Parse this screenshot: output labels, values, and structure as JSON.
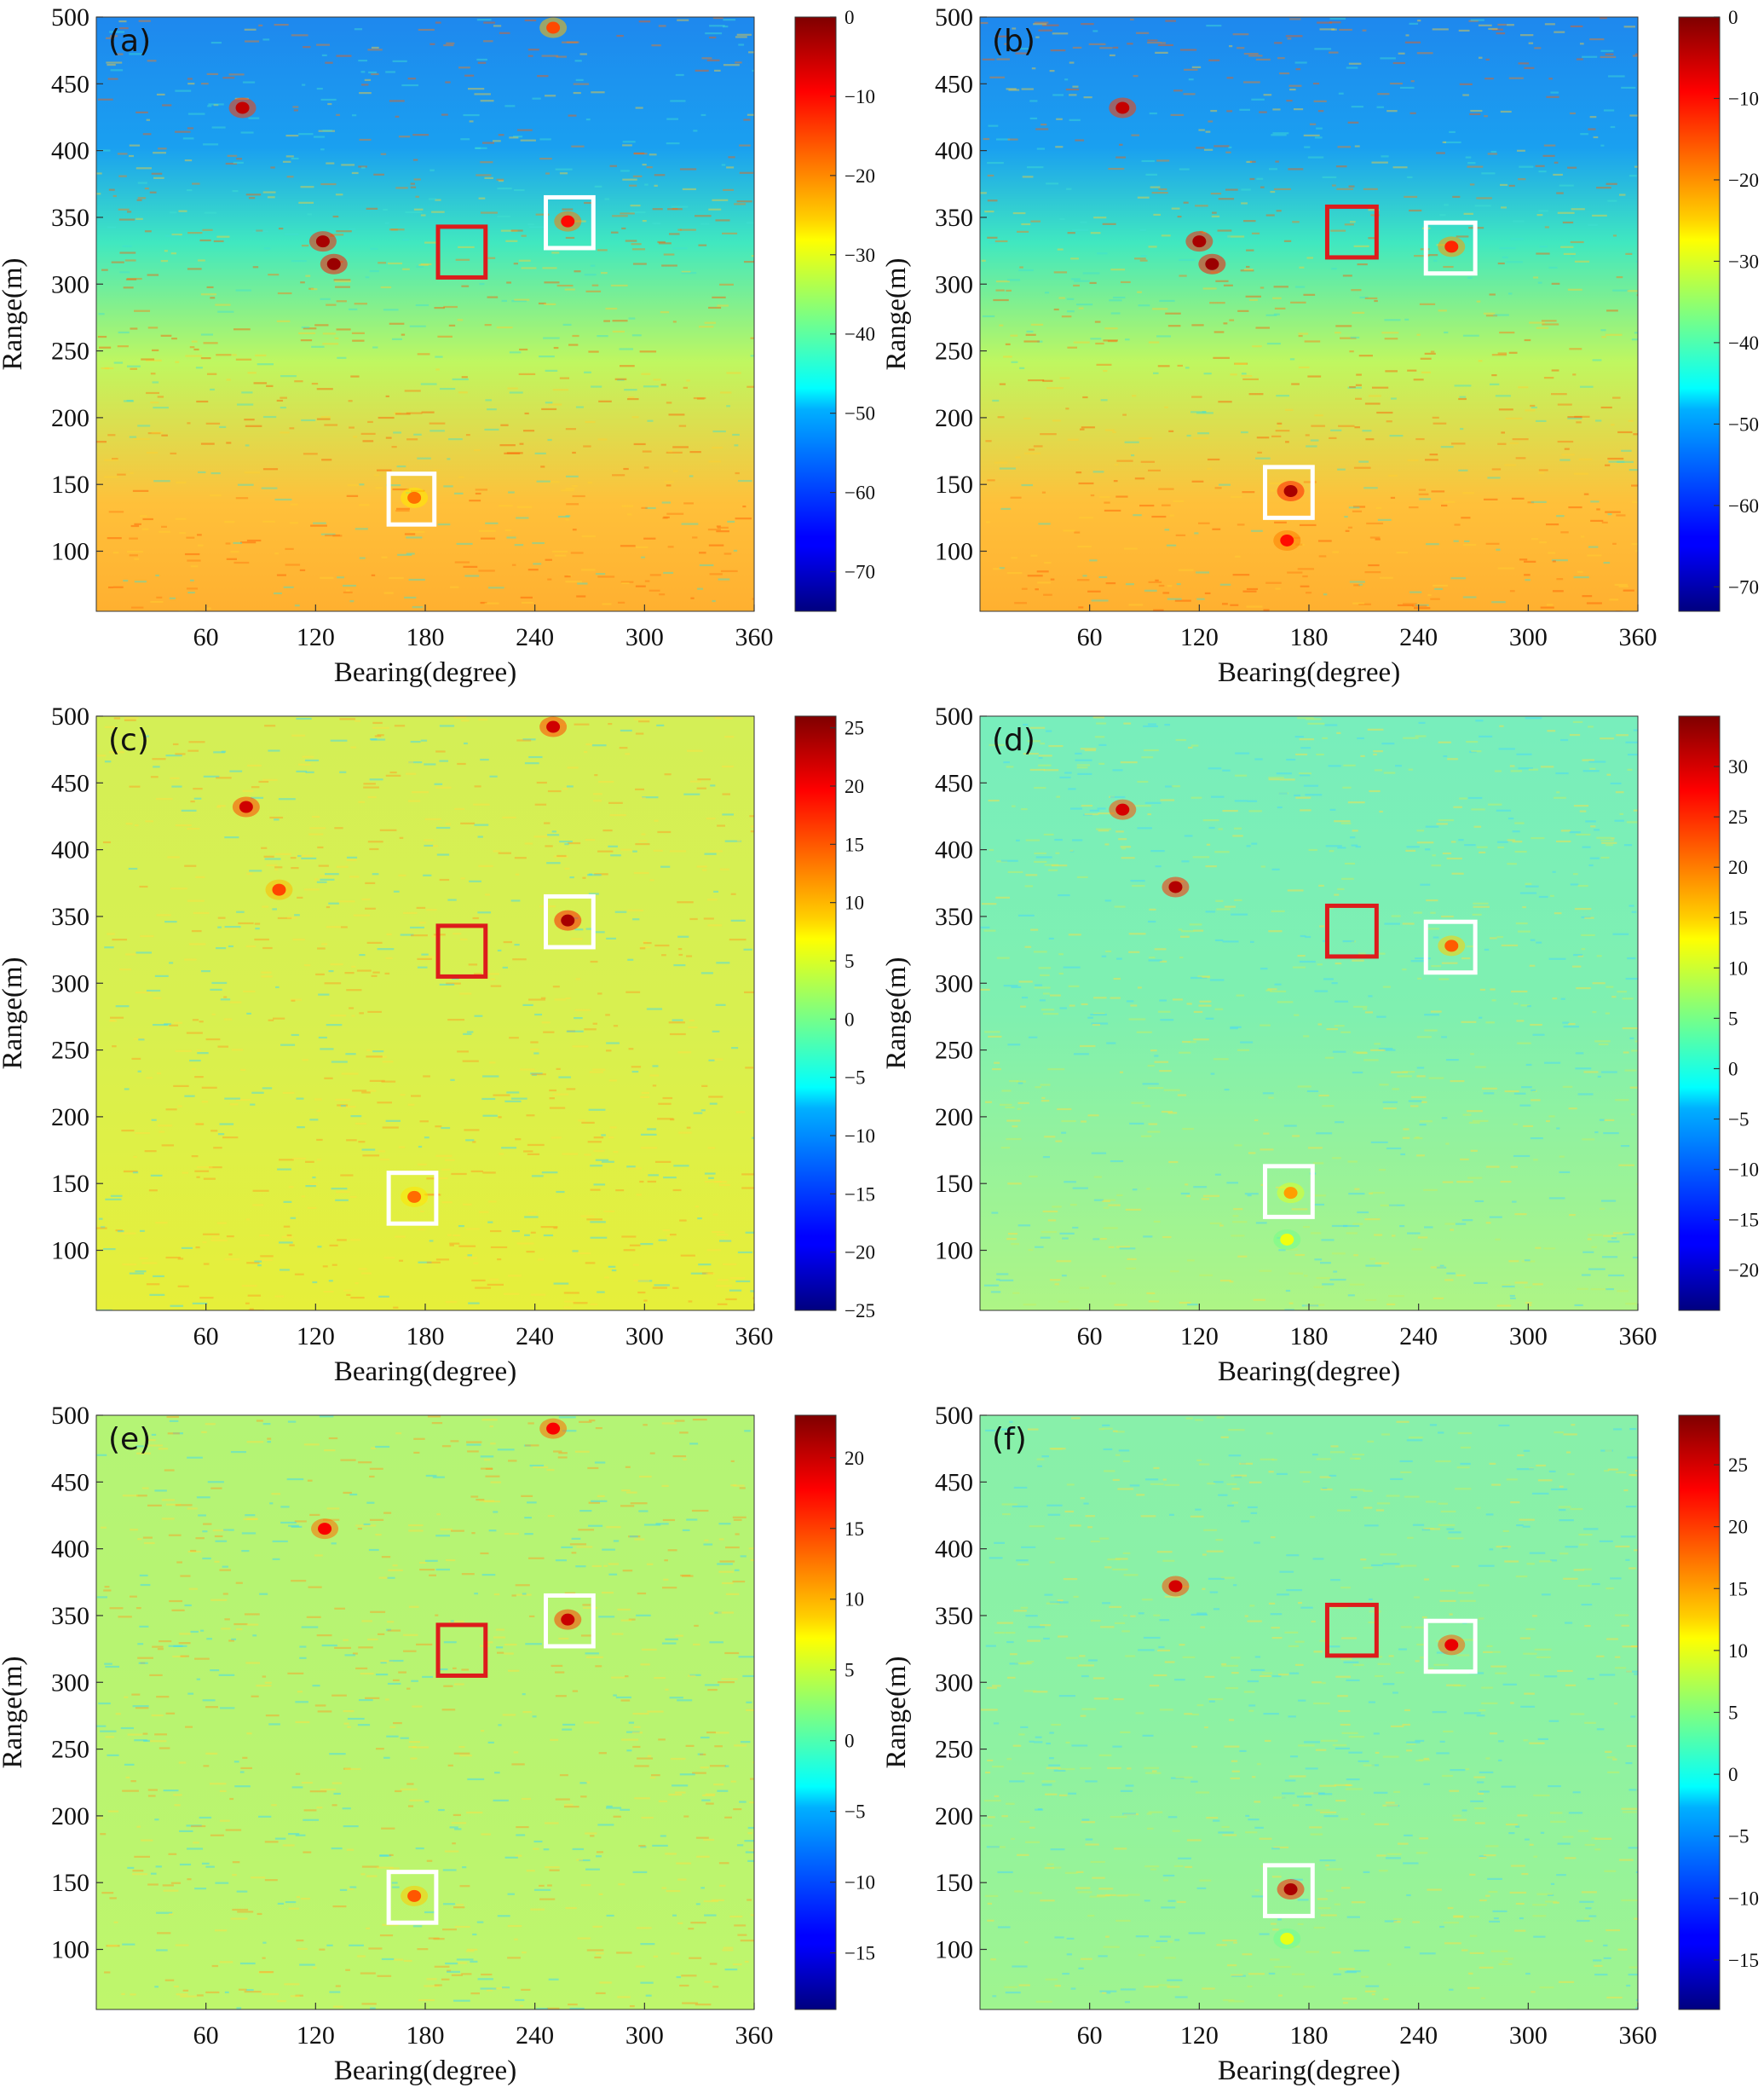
{
  "chart_data": [
    {
      "type": "heatmap",
      "label": "(a)",
      "xlabel": "Bearing(degree)",
      "ylabel": "Range(m)",
      "xlim": [
        0,
        360
      ],
      "ylim": [
        55,
        500
      ],
      "xticks": [
        60,
        120,
        180,
        240,
        300,
        360
      ],
      "yticks": [
        100,
        150,
        200,
        250,
        300,
        350,
        400,
        450,
        500
      ],
      "colormap": "jet",
      "clim": [
        -75,
        0
      ],
      "colorbar_ticks": [
        0,
        -10,
        -20,
        -30,
        -40,
        -50,
        -60,
        -70
      ],
      "features": "blue region above 380 m; green mid-field; orange-red bands at bottom; strong red scatterers near (80,432), (125,330), (130,315); U-shaped arcs around 100-180 deg",
      "boxes": [
        {
          "color": "white",
          "bearing": [
            160,
            185
          ],
          "range": [
            120,
            158
          ]
        },
        {
          "color": "white",
          "bearing": [
            246,
            272
          ],
          "range": [
            327,
            365
          ]
        },
        {
          "color": "red",
          "bearing": [
            187,
            213
          ],
          "range": [
            305,
            343
          ]
        }
      ],
      "hotspots": [
        {
          "bearing": 80,
          "range": 432,
          "value": -5
        },
        {
          "bearing": 124,
          "range": 332,
          "value": -3
        },
        {
          "bearing": 130,
          "range": 315,
          "value": -2
        },
        {
          "bearing": 258,
          "range": 347,
          "value": -10
        },
        {
          "bearing": 250,
          "range": 492,
          "value": -15
        },
        {
          "bearing": 174,
          "range": 140,
          "value": -18
        }
      ]
    },
    {
      "type": "heatmap",
      "label": "(b)",
      "xlabel": "Bearing(degree)",
      "ylabel": "Range(m)",
      "xlim": [
        0,
        360
      ],
      "ylim": [
        55,
        500
      ],
      "xticks": [
        60,
        120,
        180,
        240,
        300,
        360
      ],
      "yticks": [
        100,
        150,
        200,
        250,
        300,
        350,
        400,
        450,
        500
      ],
      "colormap": "jet",
      "clim": [
        -73,
        0
      ],
      "colorbar_ticks": [
        0,
        -10,
        -20,
        -30,
        -40,
        -50,
        -60,
        -70
      ],
      "features": "same scene as (a) with stronger target near bearing 170 deg, range 145 m",
      "boxes": [
        {
          "color": "white",
          "bearing": [
            156,
            182
          ],
          "range": [
            125,
            163
          ]
        },
        {
          "color": "white",
          "bearing": [
            244,
            271
          ],
          "range": [
            308,
            346
          ]
        },
        {
          "color": "red",
          "bearing": [
            190,
            217
          ],
          "range": [
            320,
            358
          ]
        }
      ],
      "hotspots": [
        {
          "bearing": 78,
          "range": 432,
          "value": -5
        },
        {
          "bearing": 120,
          "range": 332,
          "value": -3
        },
        {
          "bearing": 127,
          "range": 315,
          "value": -2
        },
        {
          "bearing": 258,
          "range": 328,
          "value": -12
        },
        {
          "bearing": 170,
          "range": 145,
          "value": -3
        },
        {
          "bearing": 168,
          "range": 108,
          "value": -10
        }
      ]
    },
    {
      "type": "heatmap",
      "label": "(c)",
      "xlabel": "Bearing(degree)",
      "ylabel": "Range(m)",
      "xlim": [
        0,
        360
      ],
      "ylim": [
        55,
        500
      ],
      "xticks": [
        60,
        120,
        180,
        240,
        300,
        360
      ],
      "yticks": [
        100,
        150,
        200,
        250,
        300,
        350,
        400,
        450,
        500
      ],
      "colormap": "jet",
      "clim": [
        -25,
        26
      ],
      "colorbar_ticks": [
        25,
        20,
        15,
        10,
        5,
        0,
        -5,
        -10,
        -15,
        -20,
        -25
      ],
      "features": "mostly yellow-green background with orange streaks; cyan band near 160-230 deg",
      "boxes": [
        {
          "color": "white",
          "bearing": [
            160,
            186
          ],
          "range": [
            120,
            158
          ]
        },
        {
          "color": "white",
          "bearing": [
            246,
            272
          ],
          "range": [
            327,
            365
          ]
        },
        {
          "color": "red",
          "bearing": [
            187,
            213
          ],
          "range": [
            305,
            343
          ]
        }
      ],
      "hotspots": [
        {
          "bearing": 82,
          "range": 432,
          "value": 22
        },
        {
          "bearing": 258,
          "range": 347,
          "value": 24
        },
        {
          "bearing": 250,
          "range": 492,
          "value": 22
        },
        {
          "bearing": 174,
          "range": 140,
          "value": 14
        },
        {
          "bearing": 100,
          "range": 370,
          "value": 16
        }
      ]
    },
    {
      "type": "heatmap",
      "label": "(d)",
      "xlabel": "Bearing(degree)",
      "ylabel": "Range(m)",
      "xlim": [
        0,
        360
      ],
      "ylim": [
        55,
        500
      ],
      "xticks": [
        60,
        120,
        180,
        240,
        300,
        360
      ],
      "yticks": [
        100,
        150,
        200,
        250,
        300,
        350,
        400,
        450,
        500
      ],
      "colormap": "jet",
      "clim": [
        -24,
        35
      ],
      "colorbar_ticks": [
        30,
        25,
        20,
        15,
        10,
        5,
        0,
        -5,
        -10,
        -15,
        -20
      ],
      "features": "cyan-green background, blue region 160-240 deg above 250 m",
      "boxes": [
        {
          "color": "white",
          "bearing": [
            156,
            182
          ],
          "range": [
            125,
            163
          ]
        },
        {
          "color": "white",
          "bearing": [
            244,
            271
          ],
          "range": [
            308,
            346
          ]
        },
        {
          "color": "red",
          "bearing": [
            190,
            217
          ],
          "range": [
            320,
            358
          ]
        }
      ],
      "hotspots": [
        {
          "bearing": 78,
          "range": 430,
          "value": 30
        },
        {
          "bearing": 107,
          "range": 372,
          "value": 32
        },
        {
          "bearing": 258,
          "range": 328,
          "value": 22
        },
        {
          "bearing": 170,
          "range": 143,
          "value": 18
        },
        {
          "bearing": 168,
          "range": 108,
          "value": 12
        }
      ]
    },
    {
      "type": "heatmap",
      "label": "(e)",
      "xlabel": "Bearing(degree)",
      "ylabel": "Range(m)",
      "xlim": [
        0,
        360
      ],
      "ylim": [
        55,
        500
      ],
      "xticks": [
        60,
        120,
        180,
        240,
        300,
        360
      ],
      "yticks": [
        100,
        150,
        200,
        250,
        300,
        350,
        400,
        450,
        500
      ],
      "colormap": "jet",
      "clim": [
        -19,
        23
      ],
      "colorbar_ticks": [
        20,
        15,
        10,
        5,
        0,
        -5,
        -10,
        -15
      ],
      "features": "green-yellow speckled background; orange horizontal streak near 430 m",
      "boxes": [
        {
          "color": "white",
          "bearing": [
            160,
            186
          ],
          "range": [
            120,
            158
          ]
        },
        {
          "color": "white",
          "bearing": [
            246,
            272
          ],
          "range": [
            327,
            365
          ]
        },
        {
          "color": "red",
          "bearing": [
            187,
            213
          ],
          "range": [
            305,
            343
          ]
        }
      ],
      "hotspots": [
        {
          "bearing": 258,
          "range": 347,
          "value": 20
        },
        {
          "bearing": 250,
          "range": 490,
          "value": 18
        },
        {
          "bearing": 174,
          "range": 140,
          "value": 14
        },
        {
          "bearing": 125,
          "range": 415,
          "value": 18
        }
      ]
    },
    {
      "type": "heatmap",
      "label": "(f)",
      "xlabel": "Bearing(degree)",
      "ylabel": "Range(m)",
      "xlim": [
        0,
        360
      ],
      "ylim": [
        55,
        500
      ],
      "xticks": [
        60,
        120,
        180,
        240,
        300,
        360
      ],
      "yticks": [
        100,
        150,
        200,
        250,
        300,
        350,
        400,
        450,
        500
      ],
      "colormap": "jet",
      "clim": [
        -19,
        29
      ],
      "colorbar_ticks": [
        25,
        20,
        15,
        10,
        5,
        0,
        -5,
        -10,
        -15
      ],
      "features": "cyan-green background with fine vertical streaks; strong target near (170,145)",
      "boxes": [
        {
          "color": "white",
          "bearing": [
            156,
            182
          ],
          "range": [
            125,
            163
          ]
        },
        {
          "color": "white",
          "bearing": [
            244,
            271
          ],
          "range": [
            308,
            346
          ]
        },
        {
          "color": "red",
          "bearing": [
            190,
            217
          ],
          "range": [
            320,
            358
          ]
        }
      ],
      "hotspots": [
        {
          "bearing": 107,
          "range": 372,
          "value": 25
        },
        {
          "bearing": 258,
          "range": 328,
          "value": 24
        },
        {
          "bearing": 170,
          "range": 145,
          "value": 27
        },
        {
          "bearing": 168,
          "range": 108,
          "value": 10
        }
      ]
    }
  ]
}
